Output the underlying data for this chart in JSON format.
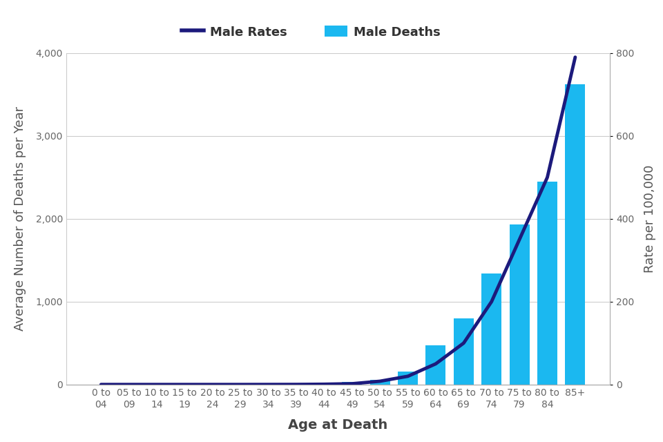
{
  "categories": [
    "0 to\n04",
    "05 to\n09",
    "10 to\n14",
    "15 to\n19",
    "20 to\n24",
    "25 to\n29",
    "30 to\n34",
    "35 to\n39",
    "40 to\n44",
    "45 to\n49",
    "50 to\n54",
    "55 to\n59",
    "60 to\n64",
    "65 to\n69",
    "70 to\n74",
    "75 to\n79",
    "80 to\n84",
    "85+"
  ],
  "deaths": [
    2,
    2,
    2,
    2,
    2,
    3,
    5,
    8,
    18,
    35,
    60,
    160,
    470,
    800,
    1340,
    1930,
    2450,
    3620
  ],
  "rates": [
    0.1,
    0.1,
    0.1,
    0.1,
    0.1,
    0.1,
    0.2,
    0.3,
    0.8,
    2,
    8,
    20,
    50,
    100,
    200,
    350,
    500,
    790
  ],
  "bar_color": "#1BB8F0",
  "line_color": "#1C1A7C",
  "ylabel_left": "Average Number of Deaths per Year",
  "ylabel_right": "Rate per 100,000",
  "xlabel": "Age at Death",
  "ylim_left": [
    0,
    4000
  ],
  "ylim_right": [
    0,
    800
  ],
  "yticks_left": [
    0,
    1000,
    2000,
    3000,
    4000
  ],
  "yticks_right": [
    0,
    200,
    400,
    600,
    800
  ],
  "legend_labels": [
    "Male Rates",
    "Male Deaths"
  ],
  "background_color": "#FFFFFF",
  "grid_color": "#CCCCCC",
  "title_fontsize": 13,
  "axis_label_fontsize": 13,
  "tick_fontsize": 10,
  "legend_fontsize": 13
}
